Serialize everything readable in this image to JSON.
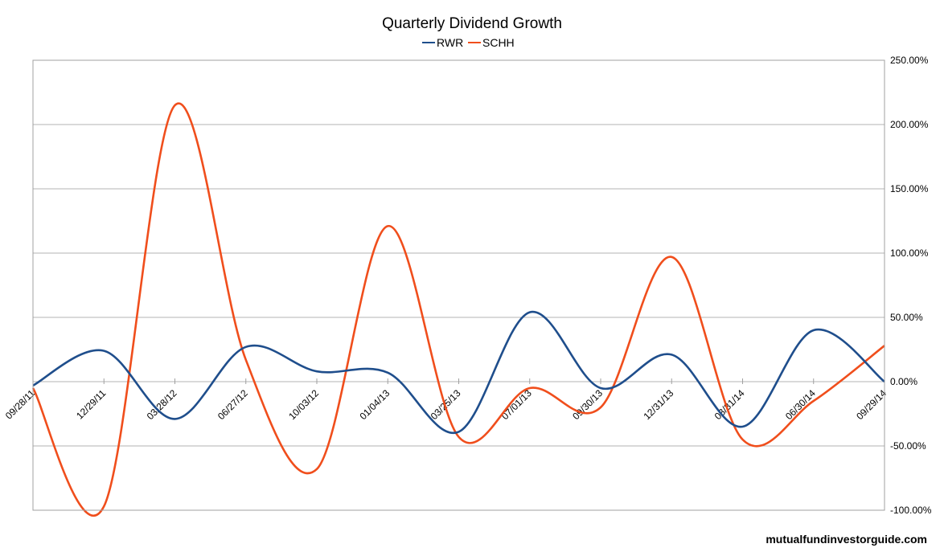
{
  "chart_data": {
    "type": "line",
    "title": "Quarterly Dividend Growth",
    "xlabel": "",
    "ylabel": "",
    "ylim": [
      -100,
      250
    ],
    "y_ticks": [
      -100,
      -50,
      0,
      50,
      100,
      150,
      200,
      250
    ],
    "y_tick_labels": [
      "-100.00%",
      "-50.00%",
      "0.00%",
      "50.00%",
      "100.00%",
      "150.00%",
      "200.00%",
      "250.00%"
    ],
    "grid": true,
    "legend_position": "top-center",
    "categories": [
      "09/28/11",
      "12/29/11",
      "03/28/12",
      "06/27/12",
      "10/03/12",
      "01/04/13",
      "03/25/13",
      "07/01/13",
      "09/30/13",
      "12/31/13",
      "03/31/14",
      "06/30/14",
      "09/29/14"
    ],
    "series": [
      {
        "name": "RWR",
        "color": "#1f4e8c",
        "values": [
          -3,
          24,
          -29,
          27,
          8,
          7,
          -39,
          54,
          -5,
          21,
          -35,
          40,
          0
        ]
      },
      {
        "name": "SCHH",
        "color": "#f04e1c",
        "values": [
          -5,
          -97,
          215,
          17,
          -68,
          121,
          -43,
          -5,
          -20,
          97,
          -45,
          -15,
          28
        ]
      }
    ]
  },
  "watermark": "mutualfundinvestorguide.com"
}
